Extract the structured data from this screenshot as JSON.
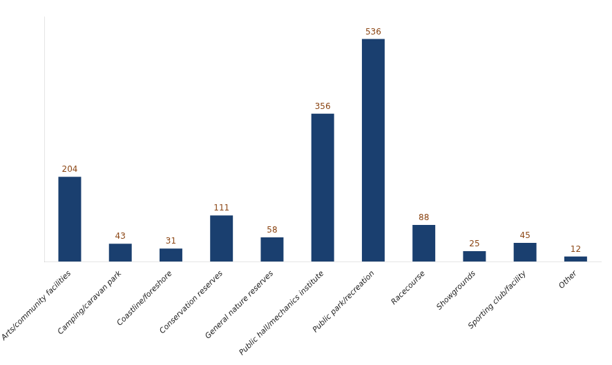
{
  "chart_data": {
    "type": "bar",
    "categories": [
      "Arts/community facilities",
      "Camping/caravan park",
      "Coastline/foreshore",
      "Conservation reserves",
      "General nature reserves",
      "Public hall/mechanics institute",
      "Public park/recreation",
      "Racecourse",
      "Showgrounds",
      "Sporting club/facility",
      "Other"
    ],
    "values": [
      204,
      43,
      31,
      111,
      58,
      356,
      536,
      88,
      25,
      45,
      12
    ],
    "color": "#1a3f6f",
    "ylim": [
      0,
      590
    ],
    "grid": false,
    "data_labels": true,
    "tick_labels": "x"
  }
}
